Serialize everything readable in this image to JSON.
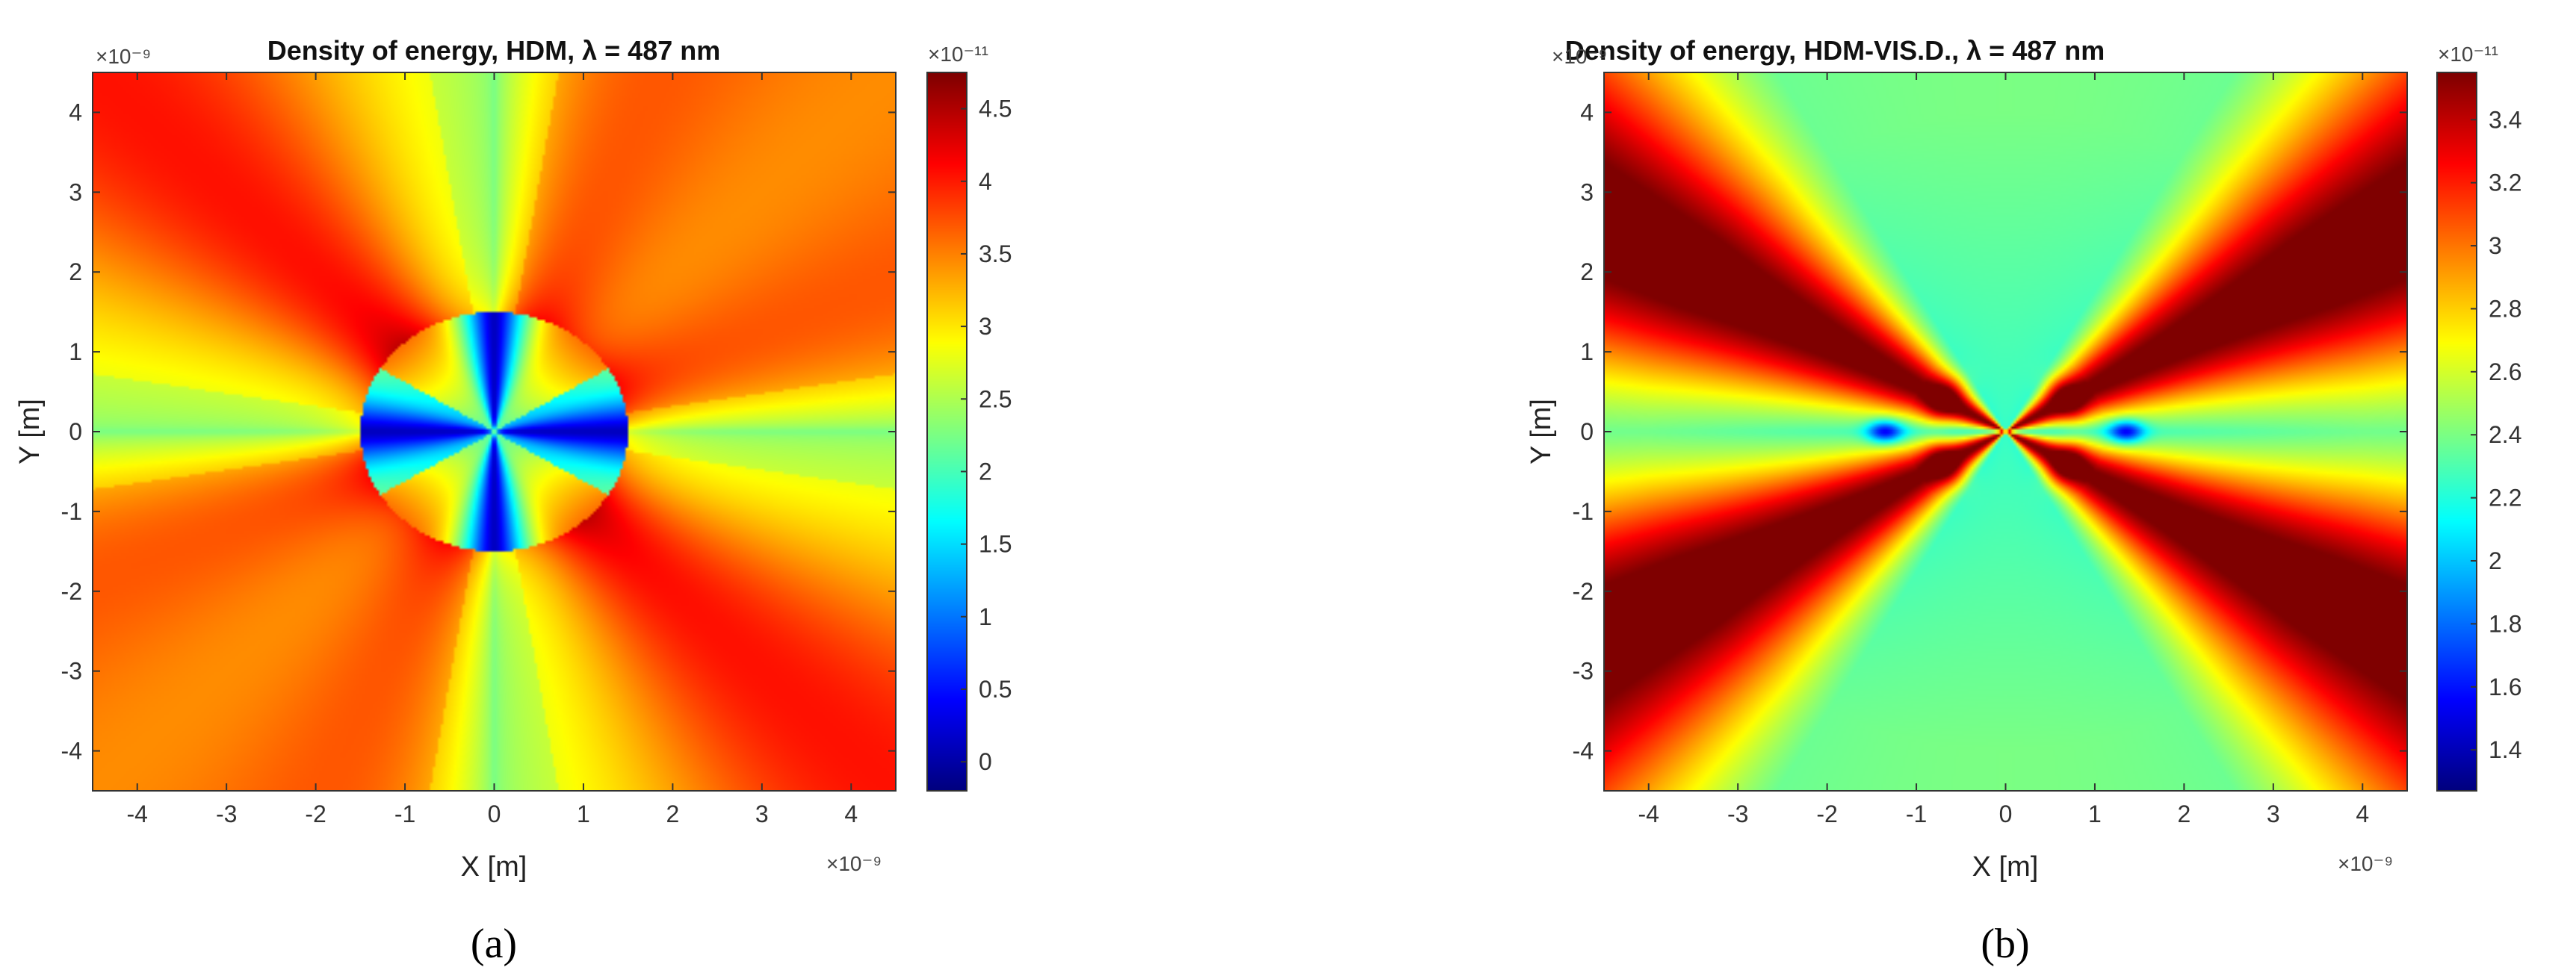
{
  "figure": {
    "captions": [
      "(a)",
      "(b)"
    ]
  },
  "chart_data": [
    {
      "type": "heatmap",
      "title": "Density of energy, HDM, λ = 487 nm",
      "xlabel": "X [m]",
      "ylabel": "Y [m]",
      "x_exponent_label": "×10⁻⁹",
      "y_exponent_label": "×10⁻⁹",
      "colorbar_exponent_label": "×10⁻¹¹",
      "xlim": [
        -4.5,
        4.5
      ],
      "ylim": [
        -4.5,
        4.5
      ],
      "x_ticks": [
        -4,
        -3,
        -2,
        -1,
        0,
        1,
        2,
        3,
        4
      ],
      "y_ticks": [
        4,
        3,
        2,
        1,
        0,
        -1,
        -2,
        -3,
        -4
      ],
      "colorbar": {
        "colormap": "jet",
        "range": [
          -0.2,
          4.75
        ],
        "ticks": [
          4.5,
          4,
          3.5,
          3,
          2.5,
          2,
          1.5,
          1,
          0.5,
          0
        ]
      },
      "field": {
        "particle_radius": 1.5,
        "outside": {
          "base": 3.75,
          "lobe_amplitude": 1.5,
          "lobe_angle_deg": 90,
          "lobe_width": 3.0,
          "near_field_boost": 0.4
        },
        "inside": {
          "low_value": 0.1,
          "high_value": 3.6,
          "dark_lobes_deg": [
            0,
            90,
            180,
            270
          ],
          "lobe_width": 1.6
        }
      }
    },
    {
      "type": "heatmap",
      "title": "Density of energy, HDM-VIS.D., λ = 487 nm",
      "xlabel": "X [m]",
      "ylabel": "Y [m]",
      "x_exponent_label": "×10⁻⁹",
      "y_exponent_label": "×10⁻⁹",
      "colorbar_exponent_label": "×10⁻¹¹",
      "xlim": [
        -4.5,
        4.5
      ],
      "ylim": [
        -4.5,
        4.5
      ],
      "x_ticks": [
        -4,
        -3,
        -2,
        -1,
        0,
        1,
        2,
        3,
        4
      ],
      "y_ticks": [
        4,
        3,
        2,
        1,
        0,
        -1,
        -2,
        -3,
        -4
      ],
      "colorbar": {
        "colormap": "jet",
        "range": [
          1.27,
          3.55
        ],
        "ticks": [
          3.4,
          3.2,
          3,
          2.8,
          2.6,
          2.4,
          2.2,
          2,
          1.8,
          1.6,
          1.4
        ]
      },
      "field": {
        "hot_lobes_deg": [
          30,
          150,
          210,
          330
        ],
        "cold_axes_deg": [
          0,
          90,
          180,
          270
        ],
        "max_value": 3.55,
        "min_value": 2.0,
        "dark_spots_x": [
          -1.35,
          1.35
        ],
        "dark_spot_value": 1.3
      }
    }
  ]
}
